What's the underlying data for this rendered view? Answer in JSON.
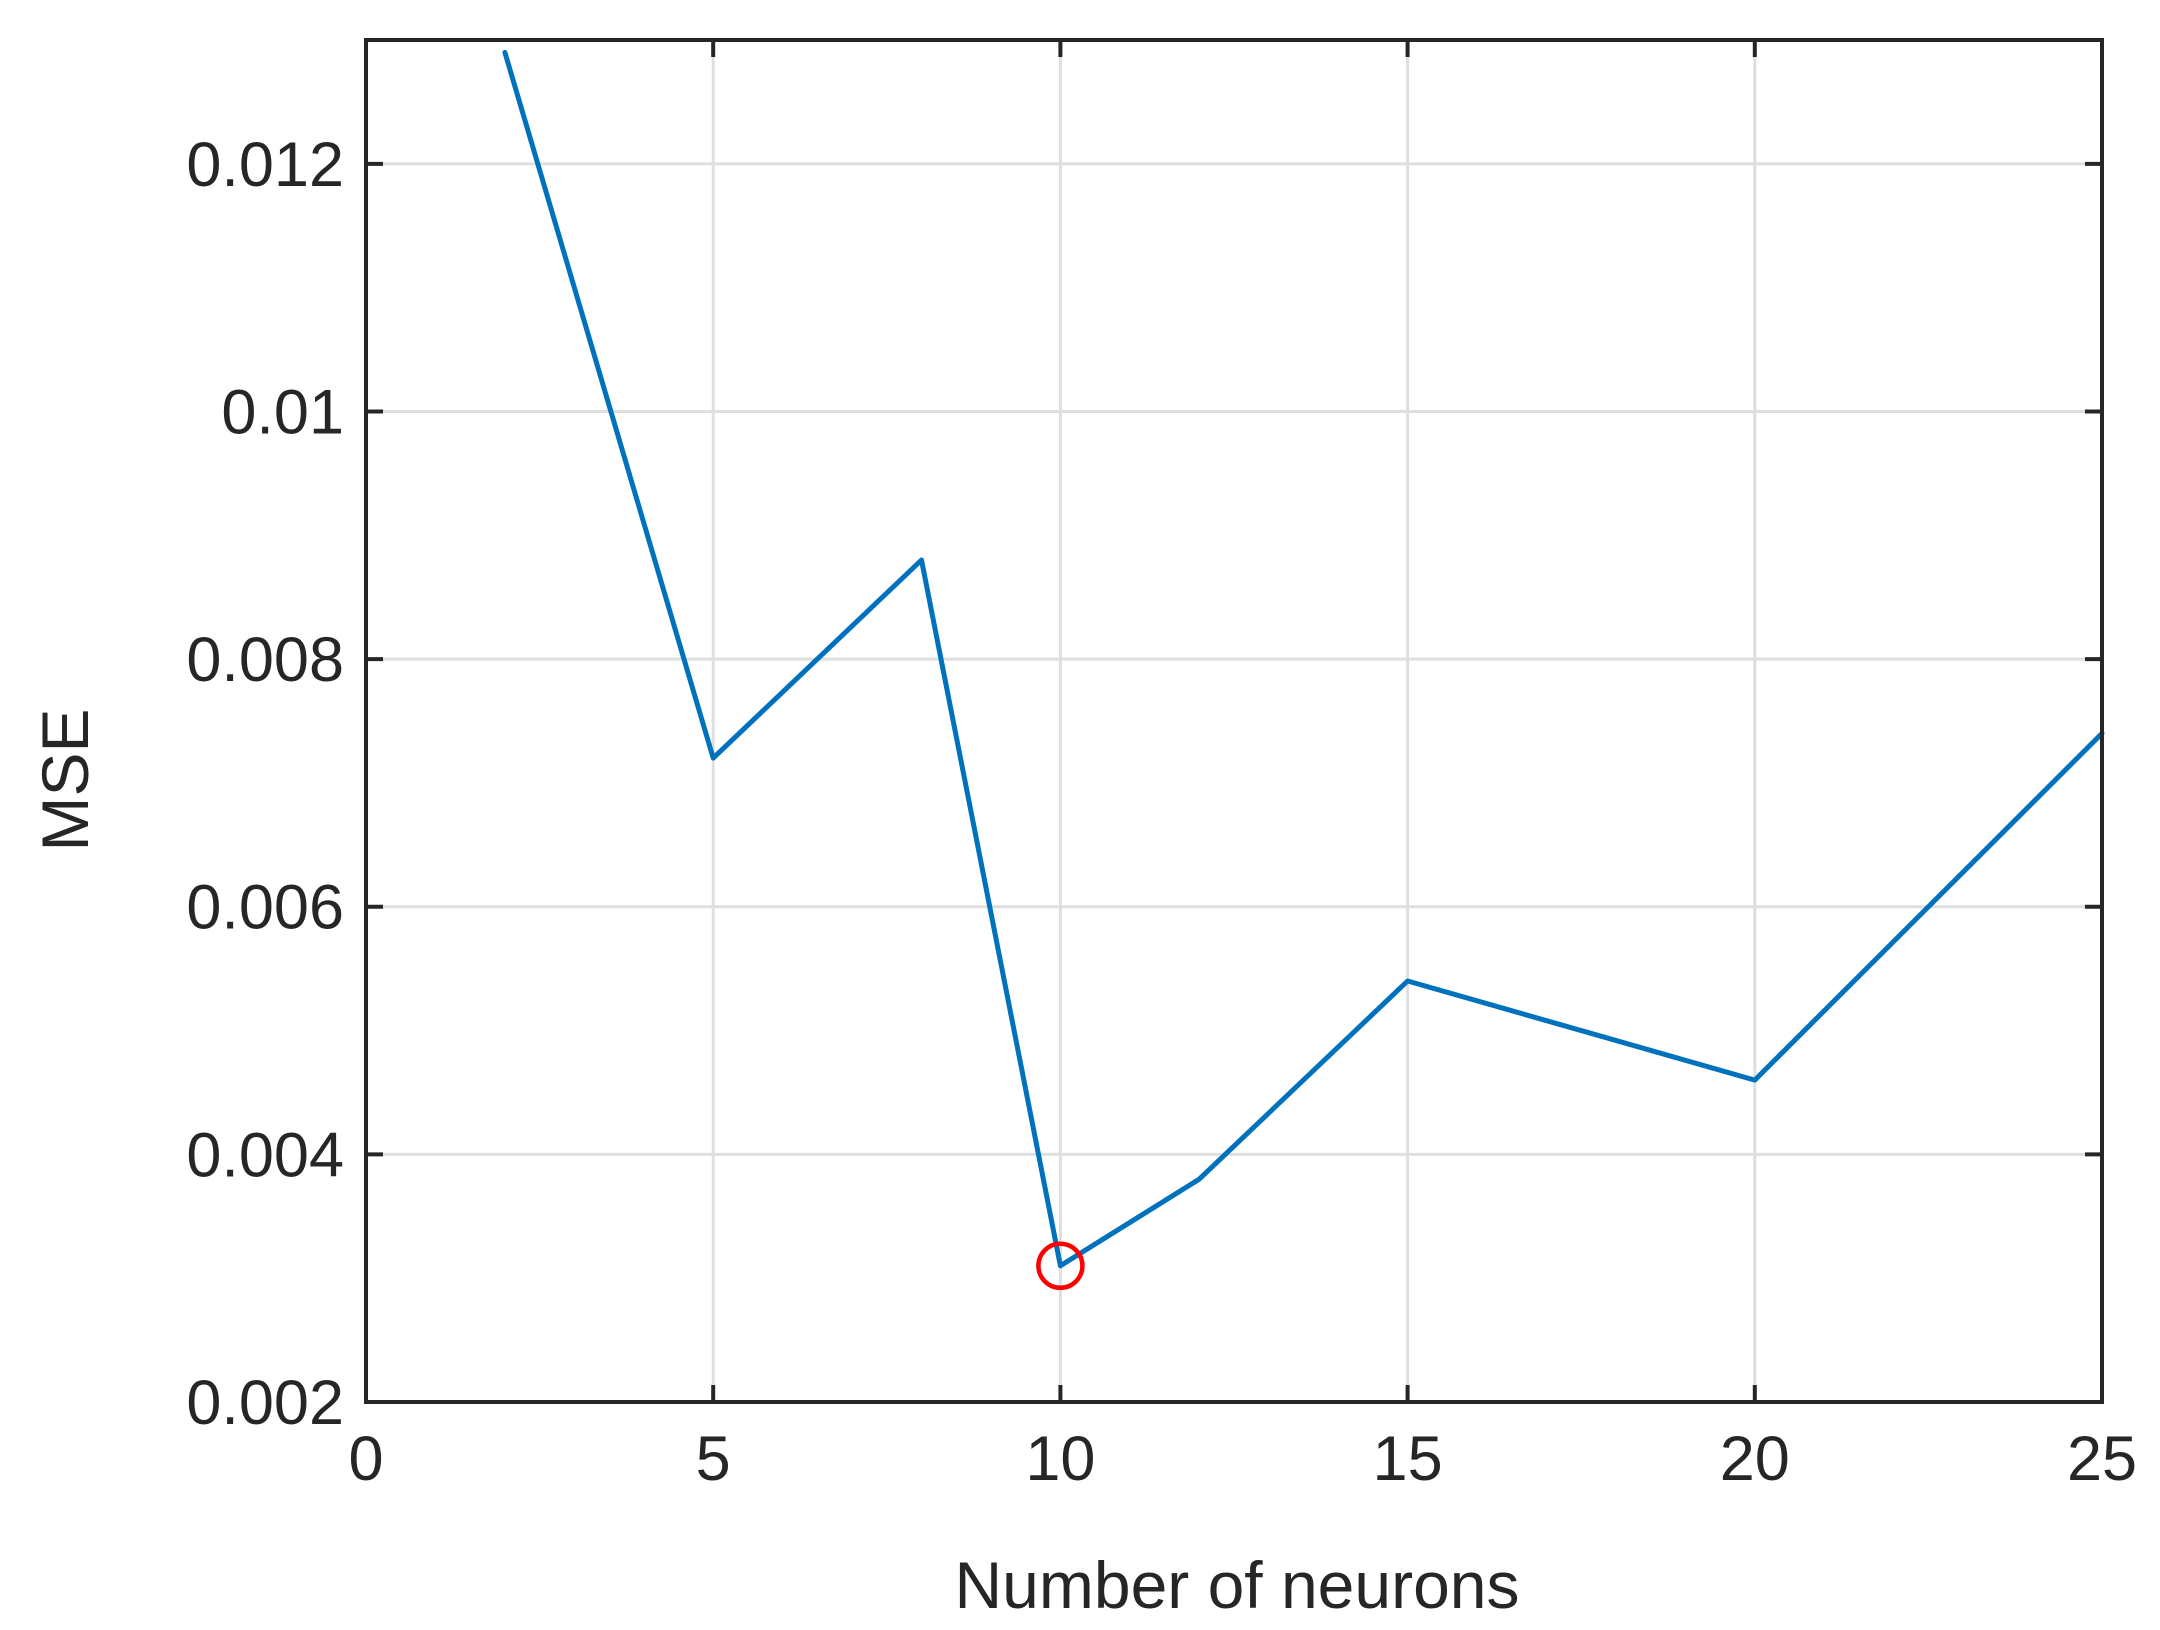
{
  "chart_data": {
    "type": "line",
    "title": "",
    "xlabel": "Number of neurons",
    "ylabel": "MSE",
    "xlim": [
      0,
      25
    ],
    "ylim": [
      0.002,
      0.013
    ],
    "grid": true,
    "x_ticks": [
      0,
      5,
      10,
      15,
      20,
      25
    ],
    "x_tick_labels": [
      "0",
      "5",
      "10",
      "15",
      "20",
      "25"
    ],
    "y_ticks": [
      0.002,
      0.004,
      0.006,
      0.008,
      0.01,
      0.012
    ],
    "y_tick_labels": [
      "0.002",
      "0.004",
      "0.006",
      "0.008",
      "0.01",
      "0.012"
    ],
    "series": [
      {
        "x": [
          2,
          5,
          8,
          10,
          12,
          15,
          20,
          25
        ],
        "y": [
          0.0129,
          0.0072,
          0.0088,
          0.0031,
          0.0038,
          0.0054,
          0.0046,
          0.0074
        ],
        "color": "#0072BD"
      }
    ],
    "highlight": {
      "x": 10,
      "y": 0.0031,
      "marker": "circle",
      "color": "#FF0000"
    },
    "colors": {
      "axis": "#262626",
      "grid": "#DFDFDF"
    }
  }
}
